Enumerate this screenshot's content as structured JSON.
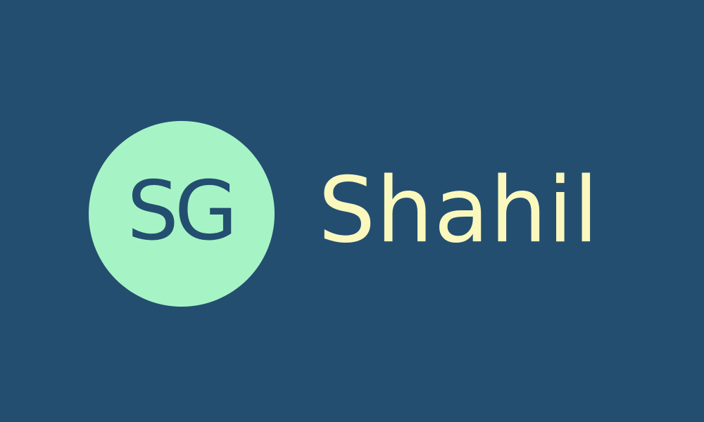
{
  "logo": {
    "initials": "SG",
    "name": "Shahil"
  },
  "colors": {
    "background": "#234e70",
    "avatar_fill": "#a6f4c5",
    "initials_text": "#234e70",
    "name_text": "#fbf8be"
  }
}
